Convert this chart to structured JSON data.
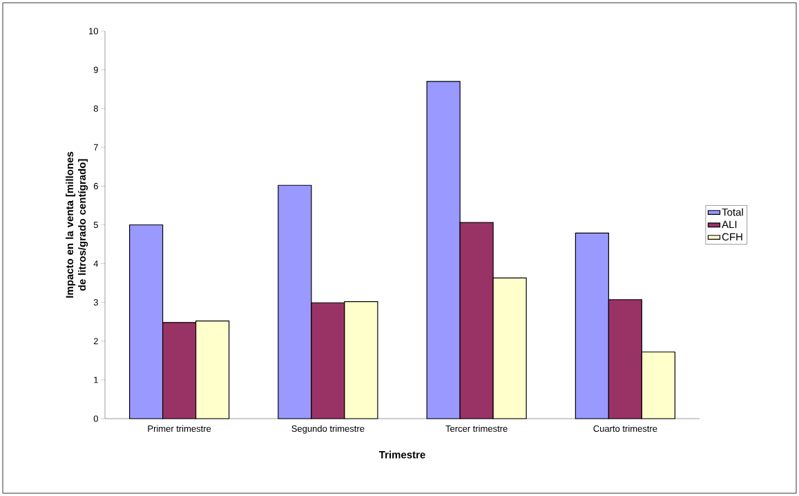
{
  "chart_data": {
    "type": "bar",
    "xlabel": "Trimestre",
    "ylabel": "Impacto en la venta [millones de litros/grado centígrado]",
    "categories": [
      "Primer trimestre",
      "Segundo trimestre",
      "Tercer trimestre",
      "Cuarto trimestre"
    ],
    "series": [
      {
        "name": "Total",
        "color": "#9999ff",
        "values": [
          5.0,
          6.02,
          8.7,
          4.79
        ]
      },
      {
        "name": "ALI",
        "color": "#993366",
        "values": [
          2.48,
          2.99,
          5.06,
          3.07
        ]
      },
      {
        "name": "CFH",
        "color": "#ffffcc",
        "values": [
          2.52,
          3.02,
          3.63,
          1.72
        ]
      }
    ],
    "ylim": [
      0,
      10
    ],
    "yticks": [
      0,
      1,
      2,
      3,
      4,
      5,
      6,
      7,
      8,
      9,
      10
    ],
    "grid": false,
    "legend": "right"
  }
}
